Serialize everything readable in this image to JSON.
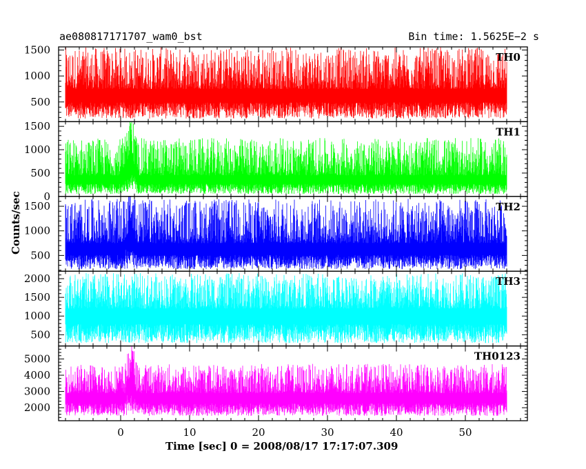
{
  "header": {
    "title_left": "ae080817171707_wam0_bst",
    "title_right": "Bin time: 1.5625E−2 s"
  },
  "chart_data": {
    "type": "line",
    "title": "ae080817171707_wam0_bst",
    "subtitle": "Bin time: 1.5625E−2 s",
    "xlabel": "Time [sec] 0 = 2008/08/17 17:17:07.309",
    "ylabel": "Counts/sec",
    "xlim": [
      -9,
      59
    ],
    "x_ticks": [
      0,
      10,
      20,
      30,
      40,
      50
    ],
    "x_range_data": [
      -8,
      56
    ],
    "grid": false,
    "panels": [
      {
        "name": "TH0",
        "color": "#ff0000",
        "ylim": [
          120,
          1560
        ],
        "y_ticks": [
          500,
          1000,
          1500
        ],
        "base_mean": 750,
        "noise_low": 180,
        "noise_high": 1550,
        "burst": 0
      },
      {
        "name": "TH1",
        "color": "#00ff00",
        "ylim": [
          0,
          1600
        ],
        "y_ticks": [
          0,
          500,
          1000,
          1500
        ],
        "base_mean": 450,
        "noise_low": 50,
        "noise_high": 1250,
        "burst": 800
      },
      {
        "name": "TH2",
        "color": "#0000ff",
        "ylim": [
          180,
          1700
        ],
        "y_ticks": [
          500,
          1000,
          1500
        ],
        "base_mean": 750,
        "noise_low": 220,
        "noise_high": 1650,
        "burst": 500
      },
      {
        "name": "TH3",
        "color": "#00ffff",
        "ylim": [
          200,
          2200
        ],
        "y_ticks": [
          500,
          1000,
          1500,
          2000
        ],
        "base_mean": 1200,
        "noise_low": 280,
        "noise_high": 2150,
        "burst": 0
      },
      {
        "name": "TH0123",
        "color": "#ff00ff",
        "ylim": [
          1200,
          5800
        ],
        "y_ticks": [
          2000,
          3000,
          4000,
          5000
        ],
        "base_mean": 2900,
        "noise_low": 1500,
        "noise_high": 4700,
        "burst": 1800
      }
    ]
  }
}
